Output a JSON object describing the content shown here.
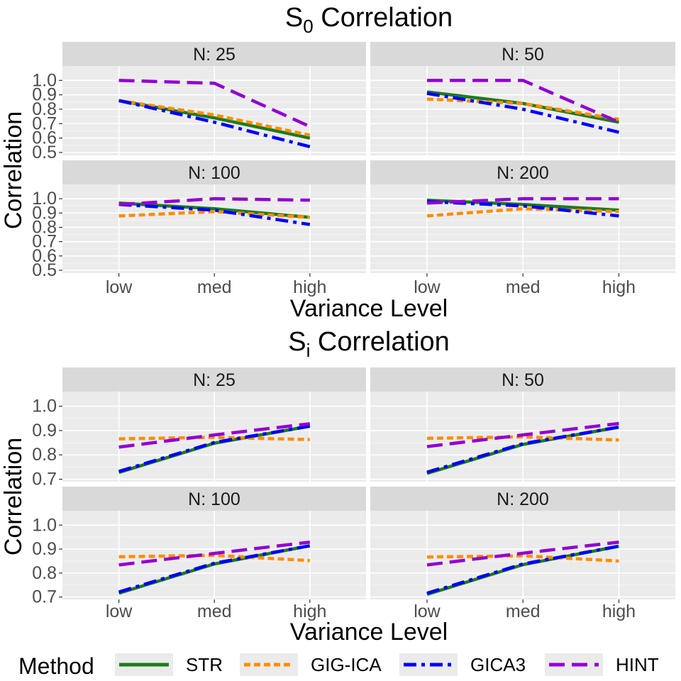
{
  "chart_data": {
    "type": "line",
    "x_categories": [
      "low",
      "med",
      "high"
    ],
    "xlabel": "Variance Level",
    "ylabel": "Correlation",
    "legend": {
      "title": "Method",
      "position": "bottom",
      "entries": [
        {
          "name": "STR",
          "color": "#1e7b1e",
          "dash": "solid"
        },
        {
          "name": "GIG-ICA",
          "color": "#ff8c00",
          "dash": "dotted"
        },
        {
          "name": "GICA3",
          "color": "#0000ff",
          "dash": "dashdot"
        },
        {
          "name": "HINT",
          "color": "#9400d3",
          "dash": "dashed"
        }
      ]
    },
    "figures": [
      {
        "title_main": "S",
        "title_sub": "0",
        "title_rest": " Correlation",
        "ylim": [
          0.48,
          1.1
        ],
        "yticks": [
          0.5,
          0.6,
          0.7,
          0.8,
          0.9,
          1.0
        ],
        "tick_labels": [
          "0.5",
          "0.6",
          "0.7",
          "0.8",
          "0.9",
          "1.0"
        ],
        "panels": [
          {
            "label": "N: 25",
            "series": [
              {
                "name": "STR",
                "values": [
                  0.86,
                  0.74,
                  0.6
                ]
              },
              {
                "name": "GIG-ICA",
                "values": [
                  0.86,
                  0.76,
                  0.62
                ]
              },
              {
                "name": "GICA3",
                "values": [
                  0.86,
                  0.71,
                  0.54
                ]
              },
              {
                "name": "HINT",
                "values": [
                  1.0,
                  0.98,
                  0.68
                ]
              }
            ]
          },
          {
            "label": "N: 50",
            "series": [
              {
                "name": "STR",
                "values": [
                  0.92,
                  0.84,
                  0.71
                ]
              },
              {
                "name": "GIG-ICA",
                "values": [
                  0.87,
                  0.84,
                  0.73
                ]
              },
              {
                "name": "GICA3",
                "values": [
                  0.91,
                  0.8,
                  0.64
                ]
              },
              {
                "name": "HINT",
                "values": [
                  1.0,
                  1.0,
                  0.71
                ]
              }
            ]
          },
          {
            "label": "N: 100",
            "series": [
              {
                "name": "STR",
                "values": [
                  0.97,
                  0.93,
                  0.87
                ]
              },
              {
                "name": "GIG-ICA",
                "values": [
                  0.88,
                  0.91,
                  0.87
                ]
              },
              {
                "name": "GICA3",
                "values": [
                  0.96,
                  0.92,
                  0.82
                ]
              },
              {
                "name": "HINT",
                "values": [
                  0.96,
                  1.0,
                  0.99
                ]
              }
            ]
          },
          {
            "label": "N: 200",
            "series": [
              {
                "name": "STR",
                "values": [
                  0.99,
                  0.96,
                  0.92
                ]
              },
              {
                "name": "GIG-ICA",
                "values": [
                  0.88,
                  0.93,
                  0.91
                ]
              },
              {
                "name": "GICA3",
                "values": [
                  0.98,
                  0.95,
                  0.88
                ]
              },
              {
                "name": "HINT",
                "values": [
                  0.97,
                  1.0,
                  1.0
                ]
              }
            ]
          }
        ]
      },
      {
        "title_main": "S",
        "title_sub": "i",
        "title_rest": " Correlation",
        "ylim": [
          0.69,
          1.06
        ],
        "yticks": [
          0.7,
          0.8,
          0.9,
          1.0
        ],
        "tick_labels": [
          "0.7",
          "0.8",
          "0.9",
          "1.0"
        ],
        "panels": [
          {
            "label": "N: 25",
            "series": [
              {
                "name": "STR",
                "values": [
                  0.728,
                  0.848,
                  0.918
                ]
              },
              {
                "name": "GIG-ICA",
                "values": [
                  0.866,
                  0.872,
                  0.863
                ]
              },
              {
                "name": "GICA3",
                "values": [
                  0.732,
                  0.851,
                  0.918
                ]
              },
              {
                "name": "HINT",
                "values": [
                  0.832,
                  0.882,
                  0.928
                ]
              }
            ]
          },
          {
            "label": "N: 50",
            "series": [
              {
                "name": "STR",
                "values": [
                  0.724,
                  0.843,
                  0.914
                ]
              },
              {
                "name": "GIG-ICA",
                "values": [
                  0.868,
                  0.874,
                  0.861
                ]
              },
              {
                "name": "GICA3",
                "values": [
                  0.729,
                  0.846,
                  0.914
                ]
              },
              {
                "name": "HINT",
                "values": [
                  0.834,
                  0.882,
                  0.929
                ]
              }
            ]
          },
          {
            "label": "N: 100",
            "series": [
              {
                "name": "STR",
                "values": [
                  0.716,
                  0.838,
                  0.914
                ]
              },
              {
                "name": "GIG-ICA",
                "values": [
                  0.868,
                  0.874,
                  0.852
                ]
              },
              {
                "name": "GICA3",
                "values": [
                  0.721,
                  0.841,
                  0.914
                ]
              },
              {
                "name": "HINT",
                "values": [
                  0.834,
                  0.882,
                  0.929
                ]
              }
            ]
          },
          {
            "label": "N: 200",
            "series": [
              {
                "name": "STR",
                "values": [
                  0.711,
                  0.835,
                  0.912
                ]
              },
              {
                "name": "GIG-ICA",
                "values": [
                  0.867,
                  0.872,
                  0.85
                ]
              },
              {
                "name": "GICA3",
                "values": [
                  0.716,
                  0.838,
                  0.912
                ]
              },
              {
                "name": "HINT",
                "values": [
                  0.834,
                  0.883,
                  0.929
                ]
              }
            ]
          }
        ]
      }
    ]
  }
}
